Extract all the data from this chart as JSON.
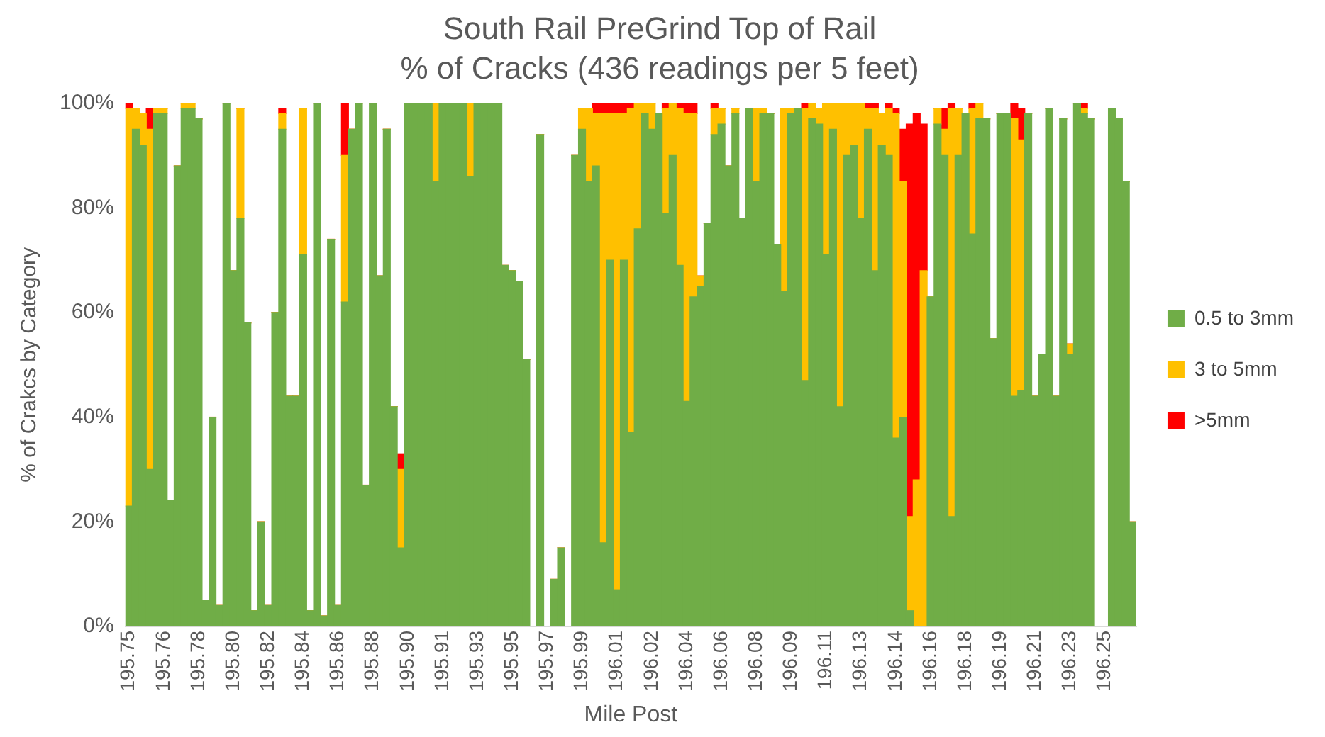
{
  "chart_data": {
    "type": "bar",
    "stacked": true,
    "title": "South Rail PreGrind Top of Rail",
    "subtitle": "% of Cracks (436 readings per 5 feet)",
    "xlabel": "Mile Post",
    "ylabel": "% of Crakcs by Category",
    "categories": [
      "195.75",
      null,
      null,
      null,
      null,
      "195.76",
      null,
      null,
      null,
      null,
      "195.78",
      null,
      null,
      null,
      null,
      "195.80",
      null,
      null,
      null,
      null,
      "195.82",
      null,
      null,
      null,
      null,
      "195.84",
      null,
      null,
      null,
      null,
      "195.86",
      null,
      null,
      null,
      null,
      "195.88",
      null,
      null,
      null,
      null,
      "195.90",
      null,
      null,
      null,
      null,
      "195.91",
      null,
      null,
      null,
      null,
      "195.93",
      null,
      null,
      null,
      null,
      "195.95",
      null,
      null,
      null,
      null,
      "195.97",
      null,
      null,
      null,
      null,
      "195.99",
      null,
      null,
      null,
      null,
      "196.01",
      null,
      null,
      null,
      null,
      "196.02",
      null,
      null,
      null,
      null,
      "196.04",
      null,
      null,
      null,
      null,
      "196.06",
      null,
      null,
      null,
      null,
      "196.08",
      null,
      null,
      null,
      null,
      "196.09",
      null,
      null,
      null,
      null,
      "196.11",
      null,
      null,
      null,
      null,
      "196.13",
      null,
      null,
      null,
      null,
      "196.14",
      null,
      null,
      null,
      null,
      "196.16",
      null,
      null,
      null,
      null,
      "196.18",
      null,
      null,
      null,
      null,
      "196.19",
      null,
      null,
      null,
      null,
      "196.21",
      null,
      null,
      null,
      null,
      "196.23",
      null,
      null,
      null,
      null,
      "196.25",
      null,
      null,
      null,
      null
    ],
    "series": [
      {
        "name": "0.5 to 3mm",
        "color": "#70ad47",
        "values": [
          23,
          95,
          92,
          30,
          98,
          98,
          24,
          88,
          99,
          99,
          97,
          5,
          40,
          4,
          100,
          68,
          78,
          58,
          3,
          20,
          4,
          60,
          95,
          44,
          44,
          71,
          3,
          100,
          2,
          74,
          4,
          62,
          95,
          100,
          27,
          100,
          67,
          95,
          42,
          15,
          100,
          100,
          100,
          100,
          85,
          100,
          100,
          100,
          100,
          86,
          100,
          100,
          100,
          100,
          69,
          68,
          66,
          51,
          0,
          94,
          0,
          9,
          15,
          0,
          90,
          95,
          85,
          88,
          16,
          70,
          7,
          70,
          37,
          76,
          98,
          95,
          98,
          79,
          90,
          69,
          43,
          63,
          65,
          77,
          94,
          96,
          88,
          98,
          78,
          99,
          85,
          98,
          98,
          73,
          64,
          98,
          99,
          47,
          97,
          96,
          71,
          95,
          42,
          90,
          92,
          78,
          95,
          68,
          92,
          90,
          36,
          40,
          3,
          0,
          0,
          63,
          96,
          90,
          21,
          90,
          98,
          75,
          97,
          97,
          55,
          98,
          98,
          44,
          45,
          98,
          44,
          52,
          99,
          44,
          97,
          52,
          100,
          98,
          97,
          0,
          0,
          99,
          97,
          85,
          20
        ]
      },
      {
        "name": "3 to 5mm",
        "color": "#ffc000",
        "values": [
          76,
          4,
          6,
          65,
          1,
          1,
          0,
          0,
          1,
          1,
          0,
          0,
          0,
          0,
          0,
          0,
          21,
          0,
          0,
          0,
          0,
          0,
          3,
          0,
          0,
          28,
          0,
          0,
          0,
          0,
          0,
          28,
          0,
          0,
          0,
          0,
          0,
          0,
          0,
          15,
          0,
          0,
          0,
          0,
          15,
          0,
          0,
          0,
          0,
          14,
          0,
          0,
          0,
          0,
          0,
          0,
          0,
          0,
          0,
          0,
          0,
          0,
          0,
          0,
          0,
          4,
          14,
          10,
          82,
          28,
          91,
          28,
          62,
          24,
          2,
          5,
          0,
          20,
          10,
          30,
          55,
          35,
          2,
          0,
          5,
          3,
          0,
          1,
          0,
          0,
          14,
          1,
          0,
          0,
          35,
          1,
          0,
          52,
          3,
          3,
          29,
          5,
          58,
          10,
          8,
          22,
          4,
          31,
          6,
          9,
          62,
          45,
          18,
          28,
          68,
          0,
          3,
          5,
          78,
          9,
          0,
          24,
          3,
          0,
          0,
          0,
          0,
          53,
          48,
          0,
          0,
          0,
          0,
          0,
          0,
          2,
          0,
          1,
          0,
          0,
          0,
          0,
          0,
          0,
          0
        ]
      },
      {
        "name": ">5mm",
        "color": "#ff0000",
        "values": [
          1,
          0,
          0,
          4,
          0,
          0,
          0,
          0,
          0,
          0,
          0,
          0,
          0,
          0,
          0,
          0,
          0,
          0,
          0,
          0,
          0,
          0,
          1,
          0,
          0,
          0,
          0,
          0,
          0,
          0,
          0,
          10,
          0,
          0,
          0,
          0,
          0,
          0,
          0,
          3,
          0,
          0,
          0,
          0,
          0,
          0,
          0,
          0,
          0,
          0,
          0,
          0,
          0,
          0,
          0,
          0,
          0,
          0,
          0,
          0,
          0,
          0,
          0,
          0,
          0,
          0,
          0,
          2,
          2,
          2,
          2,
          2,
          1,
          0,
          0,
          0,
          0,
          1,
          0,
          1,
          2,
          2,
          0,
          0,
          1,
          0,
          0,
          0,
          0,
          0,
          0,
          0,
          0,
          0,
          0,
          0,
          0,
          1,
          0,
          0,
          0,
          0,
          0,
          0,
          0,
          0,
          1,
          1,
          0,
          1,
          1,
          10,
          75,
          70,
          28,
          0,
          0,
          4,
          1,
          0,
          0,
          1,
          0,
          0,
          0,
          0,
          0,
          3,
          6,
          0,
          0,
          0,
          0,
          0,
          0,
          0,
          0,
          1,
          0,
          0,
          0,
          0,
          0,
          0,
          0
        ]
      }
    ],
    "ylim": [
      0,
      100
    ],
    "yticks": [
      {
        "value": 0,
        "label": "0%"
      },
      {
        "value": 20,
        "label": "20%"
      },
      {
        "value": 40,
        "label": "40%"
      },
      {
        "value": 60,
        "label": "60%"
      },
      {
        "value": 80,
        "label": "80%"
      },
      {
        "value": 100,
        "label": "100%"
      }
    ],
    "grid": false,
    "legend": "right"
  }
}
